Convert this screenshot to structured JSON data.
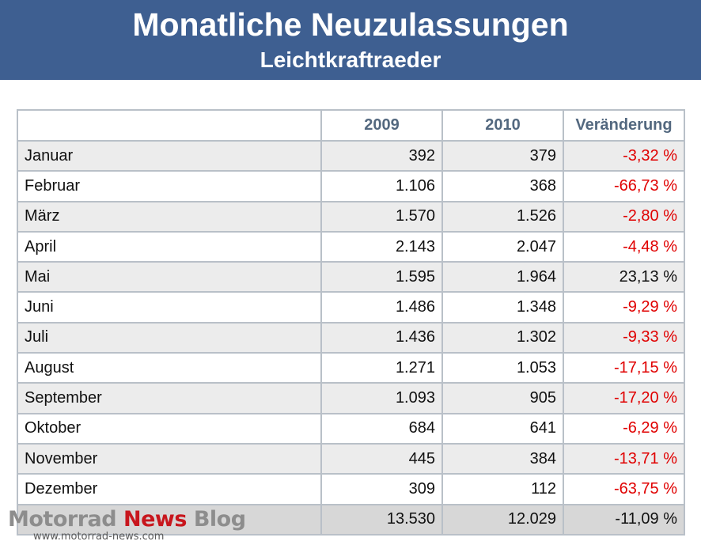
{
  "header": {
    "title": "Monatliche Neuzulassungen",
    "subtitle": "Leichtkraftraeder",
    "background_color": "#3e5f91"
  },
  "table": {
    "columns": [
      "",
      "2009",
      "2010",
      "Veränderung"
    ],
    "rows": [
      {
        "month": "Januar",
        "y2009": "392",
        "y2010": "379",
        "change": "-3,32 %"
      },
      {
        "month": "Februar",
        "y2009": "1.106",
        "y2010": "368",
        "change": "-66,73 %"
      },
      {
        "month": "März",
        "y2009": "1.570",
        "y2010": "1.526",
        "change": "-2,80 %"
      },
      {
        "month": "April",
        "y2009": "2.143",
        "y2010": "2.047",
        "change": "-4,48 %"
      },
      {
        "month": "Mai",
        "y2009": "1.595",
        "y2010": "1.964",
        "change": "23,13 %"
      },
      {
        "month": "Juni",
        "y2009": "1.486",
        "y2010": "1.348",
        "change": "-9,29 %"
      },
      {
        "month": "Juli",
        "y2009": "1.436",
        "y2010": "1.302",
        "change": "-9,33 %"
      },
      {
        "month": "August",
        "y2009": "1.271",
        "y2010": "1.053",
        "change": "-17,15 %"
      },
      {
        "month": "September",
        "y2009": "1.093",
        "y2010": "905",
        "change": "-17,20 %"
      },
      {
        "month": "Oktober",
        "y2009": "684",
        "y2010": "641",
        "change": "-6,29 %"
      },
      {
        "month": "November",
        "y2009": "445",
        "y2010": "384",
        "change": "-13,71 %"
      },
      {
        "month": "Dezember",
        "y2009": "309",
        "y2010": "112",
        "change": "-63,75 %"
      }
    ],
    "total": {
      "month": "",
      "y2009": "13.530",
      "y2010": "12.029",
      "change": "-11,09 %"
    },
    "negative_color": "#e00000",
    "header_text_color": "#53687f"
  },
  "watermark": {
    "brand_part1": "Motorrad",
    "brand_part2": "News",
    "brand_part3": "Blog",
    "url": "www.motorrad-news.com",
    "accent_color": "#c8161d"
  }
}
